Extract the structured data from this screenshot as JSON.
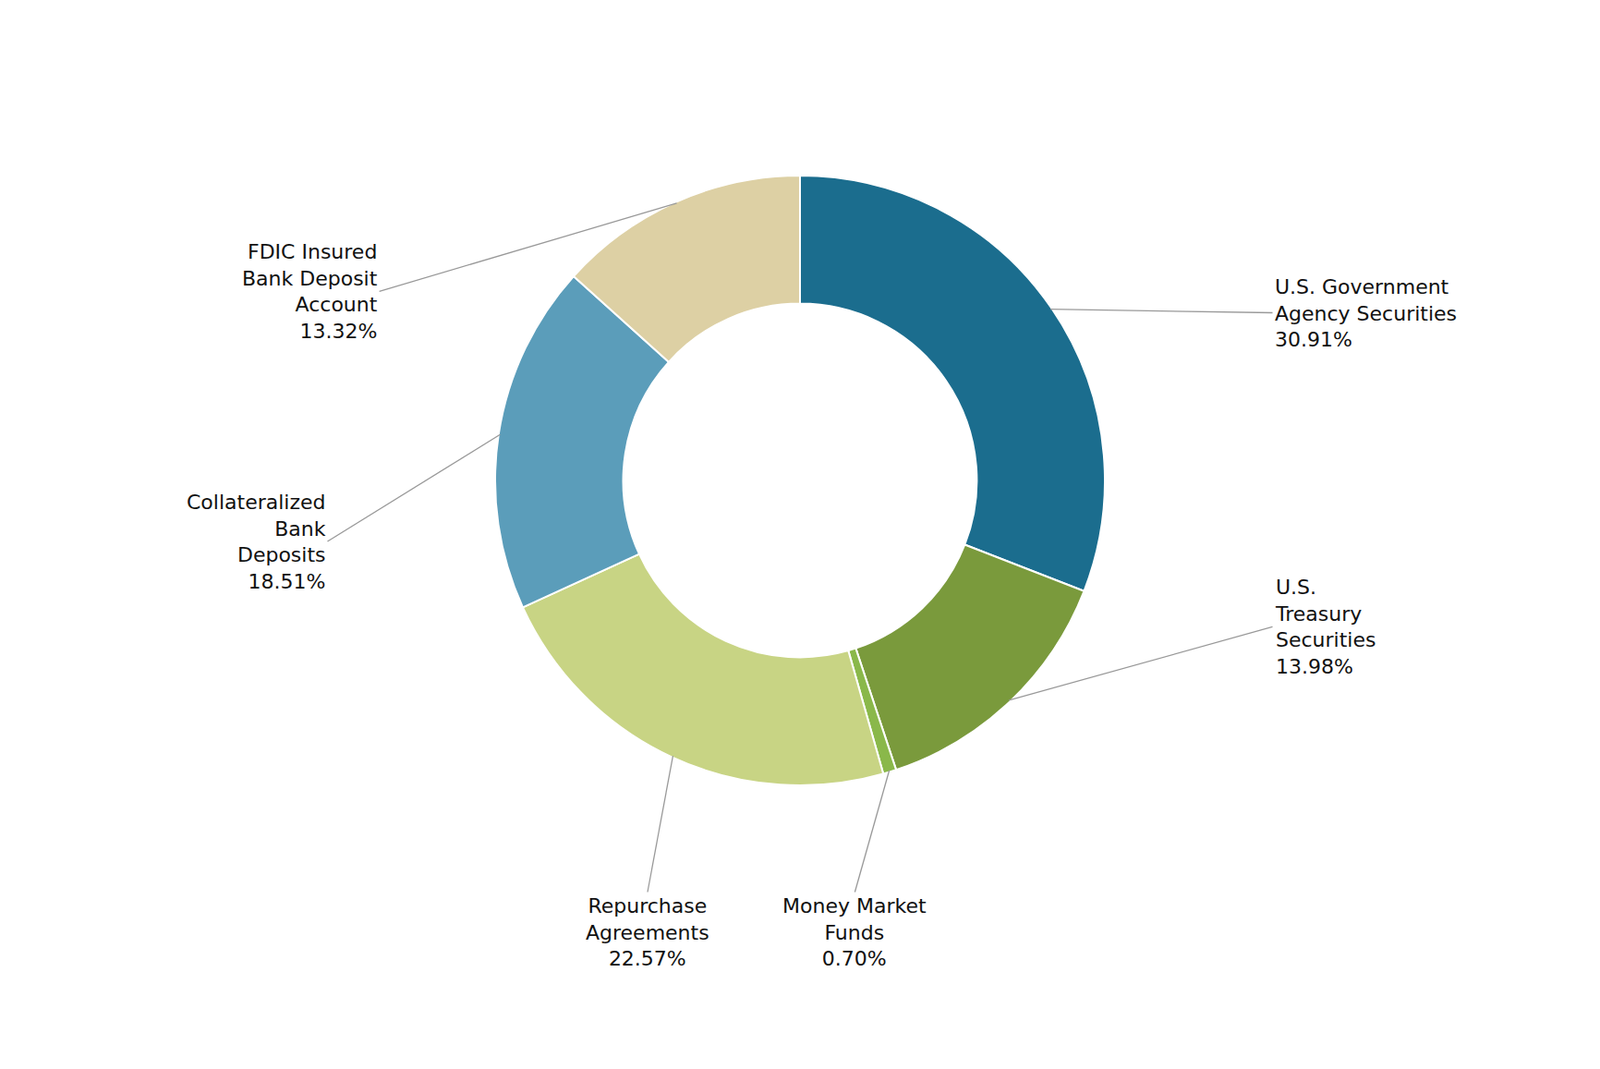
{
  "chart_data": {
    "type": "pie",
    "categories": [
      "U.S. Government\nAgency Securities",
      "U.S.\nTreasury\nSecurities",
      "Money Market\nFunds",
      "Repurchase\nAgreements",
      "Collateralized\nBank\nDeposits",
      "FDIC Insured\nBank Deposit\nAccount"
    ],
    "values": [
      30.91,
      13.98,
      0.7,
      22.57,
      18.51,
      13.32
    ],
    "value_labels": [
      "30.91%",
      "13.98%",
      "0.70%",
      "22.57%",
      "18.51%",
      "13.32%"
    ],
    "colors": [
      "#1b6d8e",
      "#7a9a3c",
      "#8ab84a",
      "#c8d484",
      "#5b9dba",
      "#ddd0a4"
    ],
    "data_labels": true
  }
}
